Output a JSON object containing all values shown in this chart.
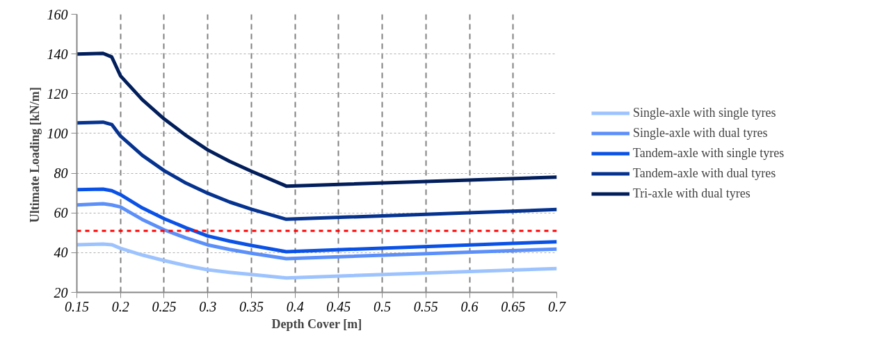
{
  "chart_data": {
    "type": "line",
    "xlabel": "Depth Cover [m]",
    "ylabel": "Ultimate Loading  [kN/m]",
    "x": [
      0.15,
      0.18,
      0.19,
      0.2,
      0.225,
      0.25,
      0.275,
      0.3,
      0.325,
      0.35,
      0.39,
      0.7
    ],
    "series": [
      {
        "name": "Single-axle with single tyres",
        "color": "#9dc3ff",
        "values": [
          44,
          44.3,
          44,
          42.2,
          38.8,
          36,
          33.5,
          31.4,
          30.1,
          29,
          27.3,
          32
        ]
      },
      {
        "name": "Single-axle with dual tyres",
        "color": "#5b8ff9",
        "values": [
          64,
          64.6,
          64,
          63,
          56.7,
          51.5,
          47.4,
          43.9,
          41.6,
          39.7,
          37,
          41.8
        ]
      },
      {
        "name": "Tandem-axle with single tyres",
        "color": "#0a52e6",
        "values": [
          71.7,
          72,
          71.2,
          69.2,
          62.5,
          57.1,
          52.5,
          48.4,
          45.8,
          43.6,
          40.5,
          45.5
        ]
      },
      {
        "name": "Tandem-axle with dual tyres",
        "color": "#05338f",
        "values": [
          105.3,
          105.7,
          104.5,
          98.7,
          89,
          81.3,
          75,
          69.9,
          65.5,
          61.9,
          56.8,
          61.7
        ]
      },
      {
        "name": "Tri-axle with dual tyres",
        "color": "#021f5c",
        "values": [
          140,
          140.3,
          138.5,
          129,
          117,
          107.3,
          99,
          91.7,
          86,
          81,
          73.5,
          78
        ]
      }
    ],
    "ref_lines": [
      {
        "axis": "y",
        "value": 51,
        "label": null,
        "color": "#ff0000",
        "line_style": "dashed"
      }
    ],
    "xlim": [
      0.15,
      0.7
    ],
    "xticks": [
      0.15,
      0.2,
      0.25,
      0.3,
      0.35,
      0.4,
      0.45,
      0.5,
      0.55,
      0.6,
      0.65,
      0.7
    ],
    "ylim": [
      20,
      160
    ],
    "yticks": [
      20,
      40,
      60,
      80,
      100,
      120,
      140,
      160
    ],
    "grid": true,
    "legend": "right",
    "line_style": "solid",
    "marker": "none"
  }
}
